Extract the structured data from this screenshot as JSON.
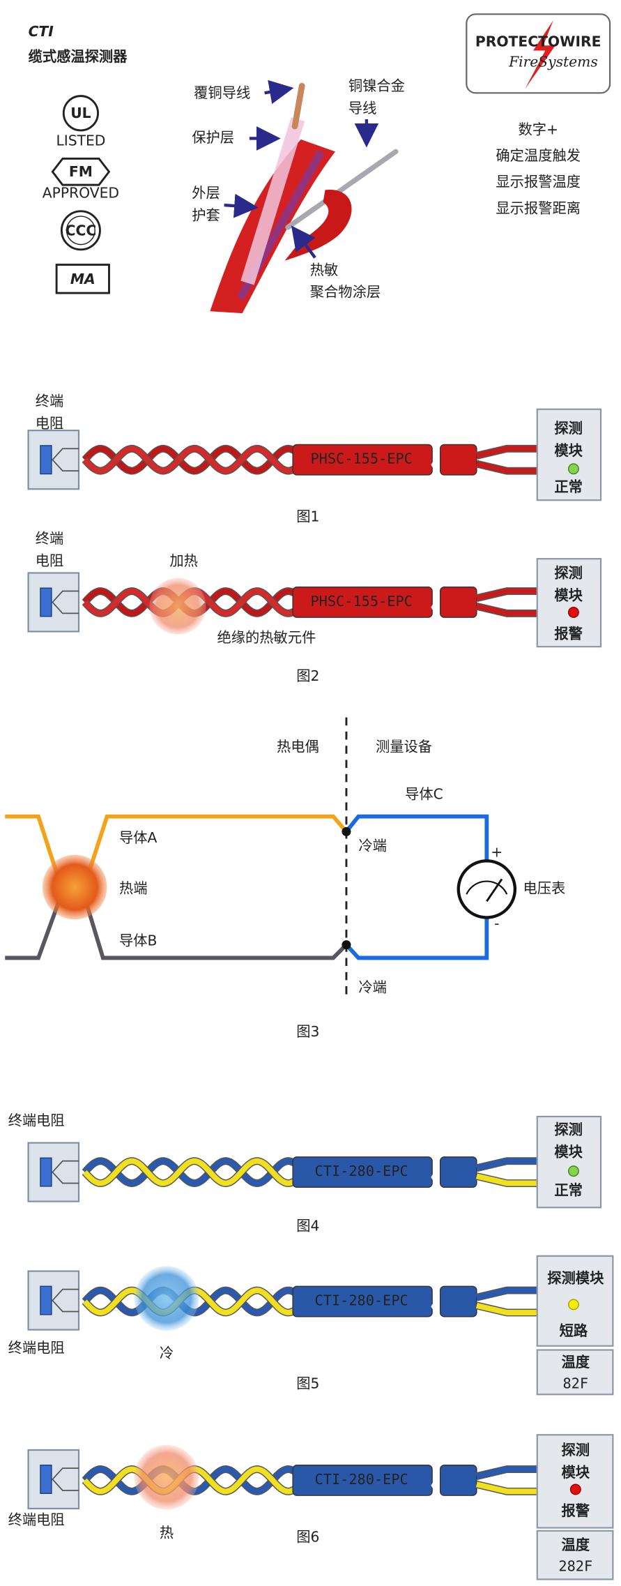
{
  "header": {
    "brand": "CTI",
    "product": "缆式感温探测器"
  },
  "certifications": {
    "ul": "UL",
    "ul_caption": "LISTED",
    "fm": "FM",
    "fm_caption": "APPROVED",
    "ccc": "CCC",
    "ma": "MA"
  },
  "cable_labels": {
    "copper_wire": "覆铜导线",
    "protective_layer": "保护层",
    "alloy_wire": [
      "铜镍合金",
      "导线"
    ],
    "outer_jacket": [
      "外层",
      "护套"
    ],
    "polymer": [
      "热敏",
      "聚合物涂层"
    ]
  },
  "logo": {
    "name": "PROTECTOWIRE",
    "sub": "FireSystems"
  },
  "features": [
    "数字+",
    "确定温度触发",
    "显示报警温度",
    "显示报警距离"
  ],
  "figures": [
    {
      "terminal": [
        "终端",
        "电阻"
      ],
      "cable": "PHSC-155-EPC",
      "module": [
        "探测",
        "模块"
      ],
      "status": "正常",
      "caption": "图1"
    },
    {
      "terminal": [
        "终端",
        "电阻"
      ],
      "heat": "加热",
      "element": "绝缘的热敏元件",
      "cable": "PHSC-155-EPC",
      "module": [
        "探测",
        "模块"
      ],
      "status": "报警",
      "caption": "图2"
    },
    {
      "thermocouple": "热电偶",
      "instrument": "测量设备",
      "conductor_c": "导体C",
      "conductor_a": "导体A",
      "hot_junction": "热端",
      "conductor_b": "导体B",
      "cold_junction": [
        "冷端",
        "冷端"
      ],
      "voltmeter": "电压表",
      "plus": "+",
      "minus": "-",
      "caption": "图3"
    },
    {
      "terminal": "终端电阻",
      "cable": "CTI-280-EPC",
      "module": [
        "探测",
        "模块"
      ],
      "status": "正常",
      "caption": "图4"
    },
    {
      "terminal": "终端电阻",
      "cold": "冷",
      "cable": "CTI-280-EPC",
      "module": "探测模块",
      "status": "短路",
      "temperature_label": "温度",
      "temperature": "82F",
      "caption": "图5"
    },
    {
      "terminal": "终端电阻",
      "heat": "热",
      "cable": "CTI-280-EPC",
      "module": [
        "探测",
        "模块"
      ],
      "status": "报警",
      "temperature_label": "温度",
      "temperature": "282F",
      "caption": "图6"
    }
  ]
}
